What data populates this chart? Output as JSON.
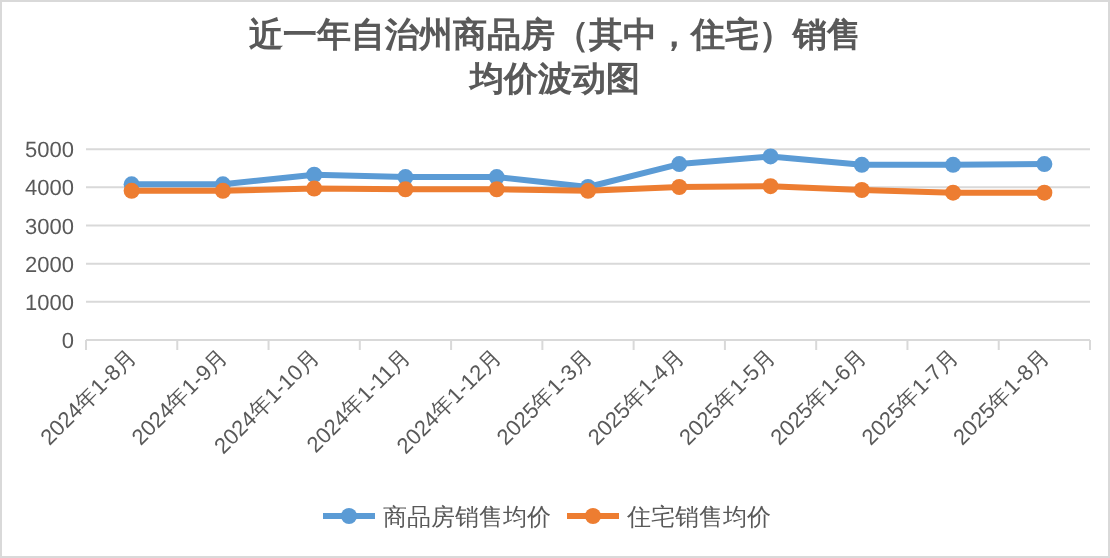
{
  "chart_data": {
    "type": "line",
    "title": "近一年自治州商品房（其中，住宅）销售均价波动图",
    "categories": [
      "2024年1-8月",
      "2024年1-9月",
      "2024年1-10月",
      "2024年1-11月",
      "2024年1-12月",
      "2025年1-3月",
      "2025年1-4月",
      "2025年1-5月",
      "2025年1-6月",
      "2025年1-7月",
      "2025年1-8月"
    ],
    "series": [
      {
        "name": "商品房销售均价",
        "color": "#5b9bd5",
        "values": [
          4080,
          4080,
          4330,
          4270,
          4270,
          4010,
          4610,
          4810,
          4590,
          4590,
          4610
        ]
      },
      {
        "name": "住宅销售均价",
        "color": "#ed7d31",
        "values": [
          3910,
          3910,
          3970,
          3950,
          3950,
          3910,
          4010,
          4030,
          3930,
          3860,
          3860
        ]
      }
    ],
    "ylim": [
      0,
      5000
    ],
    "yticks": [
      0,
      1000,
      2000,
      3000,
      4000,
      5000
    ],
    "grid": "y",
    "legend": "bottom",
    "marker": "circle",
    "line_style": "solid"
  }
}
